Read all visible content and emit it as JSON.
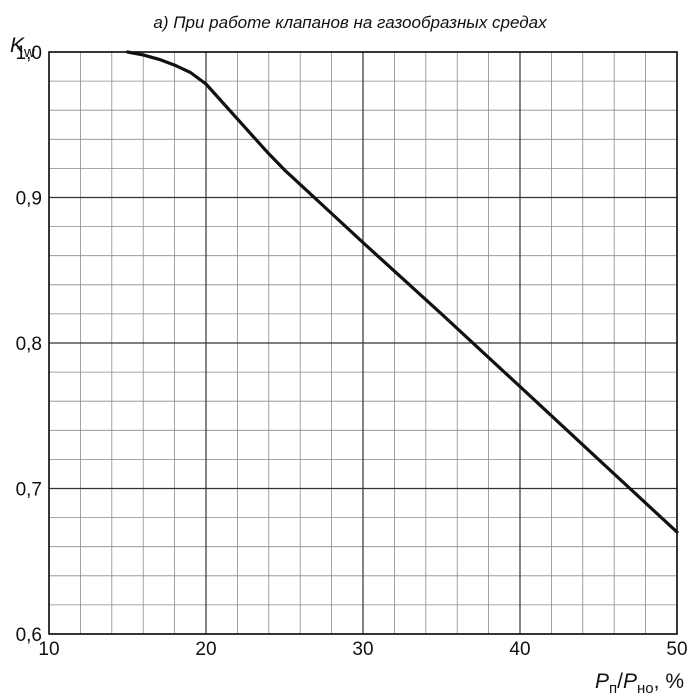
{
  "chart_data": {
    "type": "line",
    "title": "а) При работе клапанов на газообразных средах",
    "ylabel": {
      "main": "K",
      "sub": "w"
    },
    "xlabel": {
      "p1": "P",
      "p1_sub": "п",
      "slash": "/",
      "p2": "P",
      "p2_sub": "но",
      "unit": ",  %"
    },
    "xlim": [
      10,
      50
    ],
    "ylim": [
      0.6,
      1.0
    ],
    "x_ticks": [
      10,
      20,
      30,
      40,
      50
    ],
    "x_tick_labels": [
      "10",
      "20",
      "30",
      "40",
      "50"
    ],
    "y_ticks": [
      0.6,
      0.7,
      0.8,
      0.9,
      1.0
    ],
    "y_tick_labels": [
      "0,6",
      "0,7",
      "0,8",
      "0,9",
      "1,0"
    ],
    "grid": true,
    "grid_minor_step_x": 2,
    "grid_minor_step_y": 0.02,
    "series": [
      {
        "x": [
          15,
          16,
          17,
          18,
          19,
          20,
          21,
          22,
          23,
          24,
          25,
          26,
          28,
          30,
          35,
          40,
          45,
          50
        ],
        "y": [
          1.0,
          0.998,
          0.995,
          0.991,
          0.986,
          0.978,
          0.966,
          0.954,
          0.942,
          0.93,
          0.919,
          0.909,
          0.889,
          0.869,
          0.82,
          0.77,
          0.72,
          0.67
        ],
        "color": "#111111"
      }
    ]
  }
}
